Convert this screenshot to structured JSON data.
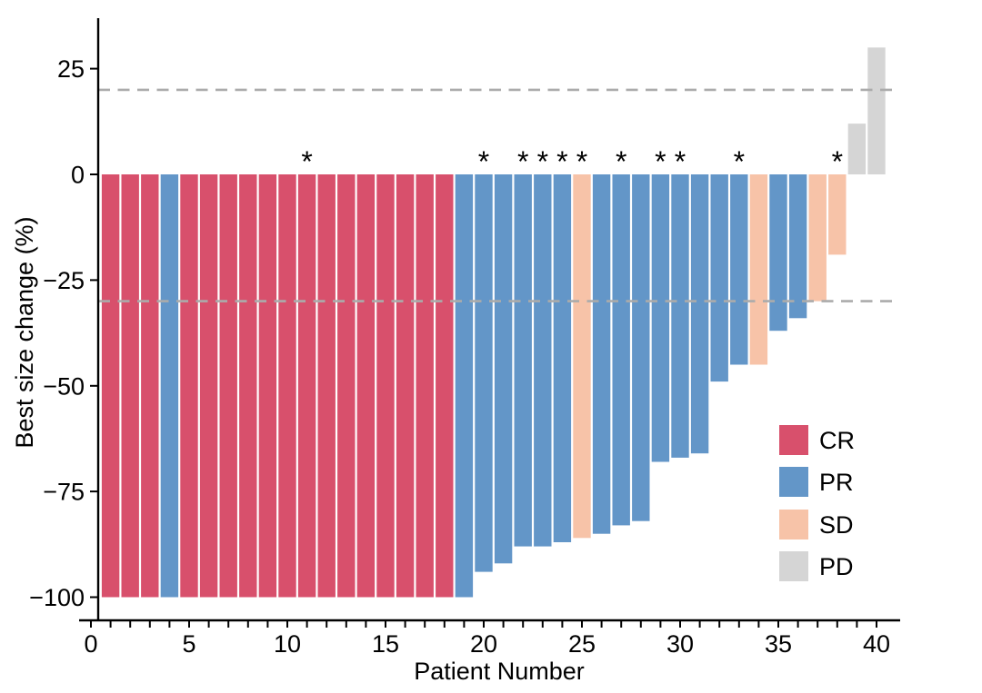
{
  "chart_data": {
    "type": "bar",
    "subtype": "waterfall-tumor-response",
    "title": "",
    "xlabel": "Patient Number",
    "ylabel": "Best size change (%)",
    "x_tick_labels": [
      0,
      5,
      10,
      15,
      20,
      25,
      30,
      35,
      40
    ],
    "x_minor_tick_every": 1,
    "xlim": [
      0,
      40.5
    ],
    "y_ticks": [
      25,
      0,
      -25,
      -50,
      -75,
      -100
    ],
    "y_tick_labels": [
      "25",
      "0",
      "−25",
      "−50",
      "−75",
      "−100"
    ],
    "ylim": [
      -107,
      33
    ],
    "grid": false,
    "reference_lines": [
      20,
      -30
    ],
    "legend_position": "inside-right",
    "legend": [
      {
        "label": "CR",
        "color": "#D8506C"
      },
      {
        "label": "PR",
        "color": "#6396C8"
      },
      {
        "label": "SD",
        "color": "#F7C3A8"
      },
      {
        "label": "PD",
        "color": "#D5D5D5"
      }
    ],
    "asterisk_patients": [
      11,
      20,
      22,
      23,
      24,
      25,
      27,
      29,
      30,
      33,
      38
    ],
    "patients": [
      {
        "patient": 1,
        "value": -100,
        "response": "CR"
      },
      {
        "patient": 2,
        "value": -100,
        "response": "CR"
      },
      {
        "patient": 3,
        "value": -100,
        "response": "CR"
      },
      {
        "patient": 4,
        "value": -100,
        "response": "PR"
      },
      {
        "patient": 5,
        "value": -100,
        "response": "CR"
      },
      {
        "patient": 6,
        "value": -100,
        "response": "CR"
      },
      {
        "patient": 7,
        "value": -100,
        "response": "CR"
      },
      {
        "patient": 8,
        "value": -100,
        "response": "CR"
      },
      {
        "patient": 9,
        "value": -100,
        "response": "CR"
      },
      {
        "patient": 10,
        "value": -100,
        "response": "CR"
      },
      {
        "patient": 11,
        "value": -100,
        "response": "CR"
      },
      {
        "patient": 12,
        "value": -100,
        "response": "CR"
      },
      {
        "patient": 13,
        "value": -100,
        "response": "CR"
      },
      {
        "patient": 14,
        "value": -100,
        "response": "CR"
      },
      {
        "patient": 15,
        "value": -100,
        "response": "CR"
      },
      {
        "patient": 16,
        "value": -100,
        "response": "CR"
      },
      {
        "patient": 17,
        "value": -100,
        "response": "CR"
      },
      {
        "patient": 18,
        "value": -100,
        "response": "CR"
      },
      {
        "patient": 19,
        "value": -100,
        "response": "PR"
      },
      {
        "patient": 20,
        "value": -94,
        "response": "PR"
      },
      {
        "patient": 21,
        "value": -92,
        "response": "PR"
      },
      {
        "patient": 22,
        "value": -88,
        "response": "PR"
      },
      {
        "patient": 23,
        "value": -88,
        "response": "PR"
      },
      {
        "patient": 24,
        "value": -87,
        "response": "PR"
      },
      {
        "patient": 25,
        "value": -86,
        "response": "SD"
      },
      {
        "patient": 26,
        "value": -85,
        "response": "PR"
      },
      {
        "patient": 27,
        "value": -83,
        "response": "PR"
      },
      {
        "patient": 28,
        "value": -82,
        "response": "PR"
      },
      {
        "patient": 29,
        "value": -68,
        "response": "PR"
      },
      {
        "patient": 30,
        "value": -67,
        "response": "PR"
      },
      {
        "patient": 31,
        "value": -66,
        "response": "PR"
      },
      {
        "patient": 32,
        "value": -49,
        "response": "PR"
      },
      {
        "patient": 33,
        "value": -45,
        "response": "PR"
      },
      {
        "patient": 34,
        "value": -45,
        "response": "SD"
      },
      {
        "patient": 35,
        "value": -37,
        "response": "PR"
      },
      {
        "patient": 36,
        "value": -34,
        "response": "PR"
      },
      {
        "patient": 37,
        "value": -30,
        "response": "SD"
      },
      {
        "patient": 38,
        "value": -19,
        "response": "SD"
      },
      {
        "patient": 39,
        "value": 12,
        "response": "PD"
      },
      {
        "patient": 40,
        "value": 30,
        "response": "PD"
      }
    ],
    "style": {
      "refline_color": "#ABABAB",
      "axis_color": "#000000",
      "asterisk_symbol": "*"
    }
  }
}
